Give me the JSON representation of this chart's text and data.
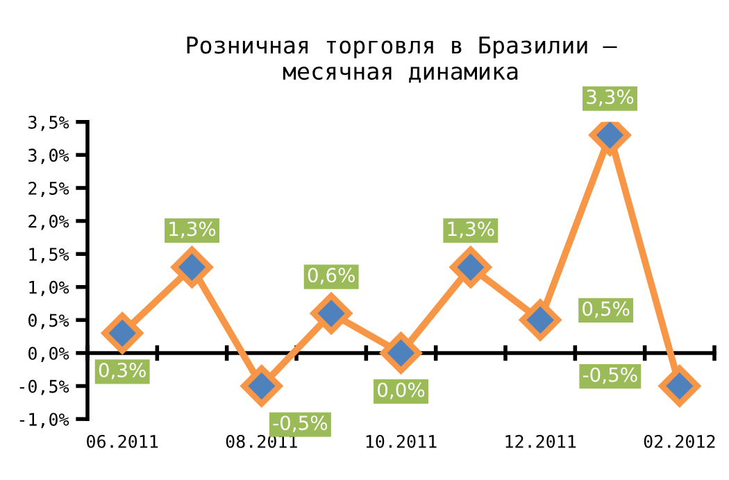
{
  "chart_data": {
    "type": "line",
    "title": "Розничная торговля в Бразилии —\nмесячная динамика",
    "categories": [
      "06.2011",
      null,
      "08.2011",
      null,
      "10.2011",
      null,
      "12.2011",
      null,
      "02.2012"
    ],
    "series": [
      {
        "color": "#f79646",
        "values": [
          0.3,
          1.3,
          -0.5,
          0.6,
          0.0,
          1.3,
          0.5,
          3.3,
          -0.5
        ],
        "value_labels": [
          "0,3%",
          "1,3%",
          "-0,5%",
          "0,6%",
          "0,0%",
          "1,3%",
          "0,5%",
          "3,3%",
          "-0,5%"
        ]
      }
    ],
    "marker": "diamond",
    "line_style": "solid",
    "ylim": [
      -1.0,
      3.5
    ],
    "yticks": [
      {
        "value": -1.0,
        "label": "-1,0%"
      },
      {
        "value": -0.5,
        "label": "-0,5%"
      },
      {
        "value": 0.0,
        "label": "0,0%"
      },
      {
        "value": 0.5,
        "label": "0,5%"
      },
      {
        "value": 1.0,
        "label": "1,0%"
      },
      {
        "value": 1.5,
        "label": "1,5%"
      },
      {
        "value": 2.0,
        "label": "2,0%"
      },
      {
        "value": 2.5,
        "label": "2,5%"
      },
      {
        "value": 3.0,
        "label": "3,0%"
      },
      {
        "value": 3.5,
        "label": "3,5%"
      }
    ]
  }
}
